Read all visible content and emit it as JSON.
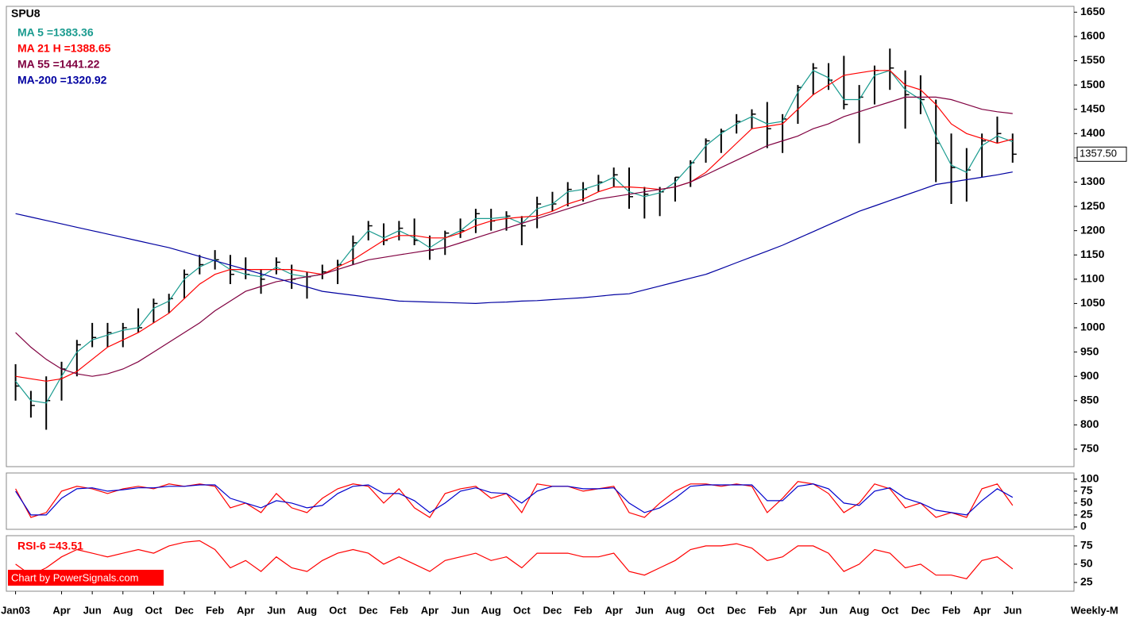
{
  "chart_data": [
    {
      "type": "hlc",
      "title": "SPU8",
      "x": [
        0,
        1,
        2,
        3,
        4,
        5,
        6,
        7,
        8,
        9,
        10,
        11,
        12,
        13,
        14,
        15,
        16,
        17,
        18,
        19,
        20,
        21,
        22,
        23,
        24,
        25,
        26,
        27,
        28,
        29,
        30,
        31,
        32,
        33,
        34,
        35,
        36,
        37,
        38,
        39,
        40,
        41,
        42,
        43,
        44,
        45,
        46,
        47,
        48,
        49,
        50,
        51,
        52,
        53,
        54,
        55,
        56,
        57,
        58,
        59,
        60,
        61,
        62,
        63,
        64,
        65
      ],
      "high": [
        925,
        870,
        900,
        930,
        975,
        1010,
        1010,
        1010,
        1040,
        1060,
        1070,
        1120,
        1150,
        1160,
        1150,
        1145,
        1120,
        1145,
        1130,
        1115,
        1130,
        1140,
        1190,
        1220,
        1215,
        1220,
        1225,
        1190,
        1200,
        1225,
        1245,
        1245,
        1240,
        1230,
        1270,
        1280,
        1300,
        1300,
        1315,
        1330,
        1330,
        1290,
        1290,
        1310,
        1345,
        1390,
        1410,
        1440,
        1450,
        1465,
        1440,
        1500,
        1545,
        1545,
        1560,
        1500,
        1540,
        1575,
        1530,
        1520,
        1470,
        1400,
        1370,
        1400,
        1435,
        1400
      ],
      "low": [
        850,
        815,
        790,
        850,
        900,
        960,
        960,
        960,
        990,
        1010,
        1030,
        1060,
        1110,
        1120,
        1090,
        1100,
        1070,
        1110,
        1080,
        1060,
        1100,
        1090,
        1130,
        1180,
        1170,
        1180,
        1170,
        1140,
        1150,
        1185,
        1195,
        1200,
        1200,
        1170,
        1205,
        1240,
        1250,
        1260,
        1280,
        1290,
        1245,
        1225,
        1230,
        1260,
        1290,
        1340,
        1360,
        1400,
        1410,
        1370,
        1360,
        1420,
        1480,
        1490,
        1450,
        1380,
        1460,
        1490,
        1410,
        1440,
        1300,
        1255,
        1260,
        1310,
        1380,
        1340
      ],
      "close": [
        880,
        840,
        850,
        915,
        965,
        980,
        990,
        1000,
        1000,
        1050,
        1060,
        1110,
        1130,
        1140,
        1110,
        1110,
        1100,
        1135,
        1100,
        1105,
        1115,
        1130,
        1175,
        1210,
        1180,
        1205,
        1180,
        1160,
        1195,
        1200,
        1235,
        1220,
        1230,
        1210,
        1255,
        1255,
        1285,
        1285,
        1300,
        1315,
        1270,
        1275,
        1280,
        1310,
        1340,
        1385,
        1405,
        1425,
        1440,
        1410,
        1430,
        1495,
        1535,
        1510,
        1460,
        1475,
        1530,
        1535,
        1480,
        1470,
        1380,
        1330,
        1325,
        1385,
        1400,
        1357.5
      ],
      "bar_color": "#000000",
      "price_label": {
        "value": 1357.5,
        "label": "1357.50"
      },
      "series": [
        {
          "name": "MA 5 =1383.36",
          "color": "#1a9b8f",
          "values": [
            890,
            850,
            845,
            900,
            950,
            975,
            985,
            995,
            1000,
            1040,
            1055,
            1100,
            1125,
            1140,
            1120,
            1110,
            1105,
            1125,
            1110,
            1105,
            1110,
            1125,
            1165,
            1200,
            1185,
            1200,
            1185,
            1165,
            1185,
            1200,
            1225,
            1225,
            1228,
            1215,
            1245,
            1255,
            1280,
            1285,
            1295,
            1310,
            1280,
            1270,
            1278,
            1300,
            1335,
            1375,
            1400,
            1420,
            1435,
            1420,
            1425,
            1485,
            1530,
            1515,
            1470,
            1470,
            1520,
            1530,
            1490,
            1470,
            1395,
            1335,
            1320,
            1375,
            1395,
            1383.36
          ]
        },
        {
          "name": "MA 21 H =1388.65",
          "color": "#ff0000",
          "values": [
            900,
            895,
            890,
            895,
            910,
            935,
            960,
            975,
            990,
            1010,
            1030,
            1060,
            1090,
            1110,
            1120,
            1120,
            1120,
            1120,
            1120,
            1115,
            1110,
            1125,
            1140,
            1160,
            1180,
            1190,
            1190,
            1185,
            1185,
            1195,
            1210,
            1220,
            1225,
            1228,
            1230,
            1240,
            1255,
            1265,
            1280,
            1290,
            1290,
            1288,
            1285,
            1290,
            1300,
            1320,
            1350,
            1380,
            1410,
            1415,
            1420,
            1450,
            1480,
            1500,
            1520,
            1525,
            1530,
            1530,
            1500,
            1490,
            1460,
            1420,
            1400,
            1390,
            1380,
            1388.65
          ]
        },
        {
          "name": "MA 55 =1441.22",
          "color": "#800040",
          "values": [
            990,
            960,
            935,
            915,
            905,
            900,
            905,
            915,
            930,
            950,
            970,
            990,
            1010,
            1035,
            1055,
            1075,
            1085,
            1095,
            1100,
            1105,
            1110,
            1120,
            1130,
            1140,
            1145,
            1150,
            1155,
            1160,
            1165,
            1175,
            1185,
            1195,
            1205,
            1215,
            1225,
            1235,
            1245,
            1255,
            1265,
            1270,
            1275,
            1280,
            1285,
            1290,
            1300,
            1315,
            1330,
            1345,
            1360,
            1375,
            1385,
            1395,
            1410,
            1420,
            1435,
            1445,
            1455,
            1465,
            1475,
            1475,
            1475,
            1470,
            1460,
            1450,
            1445,
            1441.22
          ]
        },
        {
          "name": "MA-200 =1320.92",
          "color": "#0000a0",
          "values": [
            1235,
            1228,
            1221,
            1214,
            1207,
            1200,
            1193,
            1186,
            1179,
            1172,
            1165,
            1156,
            1147,
            1138,
            1129,
            1120,
            1111,
            1102,
            1093,
            1084,
            1075,
            1071,
            1067,
            1063,
            1059,
            1055,
            1054,
            1053,
            1052,
            1051,
            1050,
            1052,
            1053,
            1055,
            1056,
            1058,
            1060,
            1062,
            1065,
            1068,
            1070,
            1078,
            1086,
            1094,
            1102,
            1110,
            1122,
            1134,
            1146,
            1158,
            1170,
            1184,
            1198,
            1212,
            1226,
            1240,
            1251,
            1262,
            1273,
            1284,
            1295,
            1300,
            1305,
            1310,
            1315,
            1320.92
          ]
        }
      ],
      "xlim": [
        -0.6,
        69
      ],
      "ylim": [
        714,
        1662
      ],
      "yticks": [
        750,
        800,
        850,
        900,
        950,
        1000,
        1050,
        1100,
        1150,
        1200,
        1250,
        1300,
        1350,
        1400,
        1450,
        1500,
        1550,
        1600,
        1650
      ]
    },
    {
      "type": "line",
      "series": [
        {
          "color": "#ff0000",
          "values": [
            80,
            20,
            30,
            75,
            85,
            80,
            70,
            80,
            85,
            80,
            90,
            85,
            90,
            85,
            40,
            50,
            30,
            70,
            40,
            30,
            60,
            80,
            90,
            85,
            50,
            80,
            40,
            20,
            70,
            80,
            85,
            60,
            70,
            30,
            90,
            85,
            85,
            75,
            80,
            85,
            30,
            20,
            50,
            75,
            90,
            90,
            85,
            90,
            85,
            30,
            60,
            95,
            90,
            70,
            30,
            50,
            90,
            80,
            40,
            50,
            20,
            30,
            20,
            80,
            90,
            45
          ]
        },
        {
          "color": "#0000cc",
          "values": [
            75,
            25,
            25,
            60,
            80,
            82,
            75,
            78,
            82,
            82,
            85,
            85,
            88,
            88,
            60,
            50,
            40,
            55,
            50,
            40,
            45,
            70,
            85,
            88,
            70,
            70,
            55,
            30,
            50,
            75,
            82,
            72,
            70,
            50,
            75,
            85,
            85,
            80,
            80,
            82,
            50,
            30,
            40,
            60,
            85,
            88,
            88,
            88,
            88,
            55,
            55,
            85,
            90,
            80,
            50,
            45,
            75,
            82,
            60,
            50,
            35,
            30,
            25,
            55,
            80,
            62
          ]
        }
      ],
      "ylim": [
        -5,
        113
      ],
      "yticks": [
        0,
        25,
        50,
        75,
        100
      ]
    },
    {
      "type": "line",
      "title": "RSI-6 =43.51",
      "series": [
        {
          "color": "#ff0000",
          "values": [
            50,
            35,
            45,
            60,
            70,
            65,
            60,
            65,
            70,
            65,
            75,
            80,
            82,
            70,
            45,
            55,
            40,
            60,
            45,
            40,
            55,
            65,
            70,
            65,
            50,
            60,
            50,
            40,
            55,
            60,
            65,
            55,
            60,
            45,
            65,
            65,
            65,
            60,
            60,
            65,
            40,
            35,
            45,
            55,
            70,
            75,
            75,
            78,
            72,
            55,
            60,
            75,
            75,
            65,
            40,
            50,
            70,
            65,
            45,
            50,
            35,
            35,
            30,
            55,
            60,
            43.51
          ]
        }
      ],
      "ylim": [
        13,
        89
      ],
      "yticks": [
        25,
        50,
        75
      ],
      "credit": "Chart by PowerSignals.com",
      "period": "Weekly-M",
      "xticks": [
        {
          "value": 0,
          "label": "Jan03"
        },
        {
          "value": 3,
          "label": "Apr"
        },
        {
          "value": 5,
          "label": "Jun"
        },
        {
          "value": 7,
          "label": "Aug"
        },
        {
          "value": 9,
          "label": "Oct"
        },
        {
          "value": 11,
          "label": "Dec"
        },
        {
          "value": 13,
          "label": "Feb"
        },
        {
          "value": 15,
          "label": "Apr"
        },
        {
          "value": 17,
          "label": "Jun"
        },
        {
          "value": 19,
          "label": "Aug"
        },
        {
          "value": 21,
          "label": "Oct"
        },
        {
          "value": 23,
          "label": "Dec"
        },
        {
          "value": 25,
          "label": "Feb"
        },
        {
          "value": 27,
          "label": "Apr"
        },
        {
          "value": 29,
          "label": "Jun"
        },
        {
          "value": 31,
          "label": "Aug"
        },
        {
          "value": 33,
          "label": "Oct"
        },
        {
          "value": 35,
          "label": "Dec"
        },
        {
          "value": 37,
          "label": "Feb"
        },
        {
          "value": 39,
          "label": "Apr"
        },
        {
          "value": 41,
          "label": "Jun"
        },
        {
          "value": 43,
          "label": "Aug"
        },
        {
          "value": 45,
          "label": "Oct"
        },
        {
          "value": 47,
          "label": "Dec"
        },
        {
          "value": 49,
          "label": "Feb"
        },
        {
          "value": 51,
          "label": "Apr"
        },
        {
          "value": 53,
          "label": "Jun"
        },
        {
          "value": 55,
          "label": "Aug"
        },
        {
          "value": 57,
          "label": "Oct"
        },
        {
          "value": 59,
          "label": "Dec"
        },
        {
          "value": 61,
          "label": "Feb"
        },
        {
          "value": 63,
          "label": "Apr"
        },
        {
          "value": 65,
          "label": "Jun"
        }
      ]
    }
  ]
}
